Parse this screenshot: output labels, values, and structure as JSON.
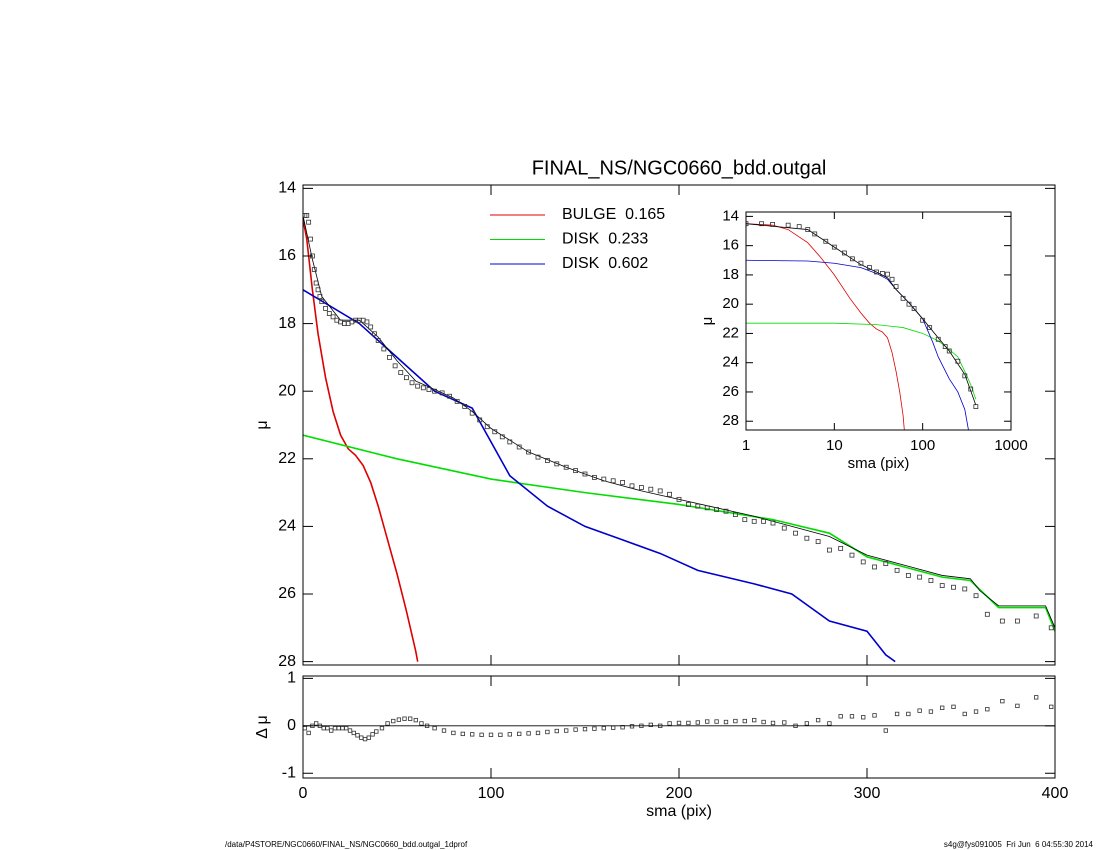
{
  "chart_data": [
    {
      "type": "line",
      "title": "FINAL_NS/NGC0660_bdd.outgal",
      "ylabel": "μ",
      "xlim": [
        0,
        400
      ],
      "xticks": [
        0,
        100,
        200,
        300,
        400
      ],
      "xtick_labels": false,
      "ylim": [
        28.1,
        13.9
      ],
      "yticks": [
        14,
        16,
        18,
        20,
        22,
        24,
        26,
        28
      ],
      "series": [
        {
          "name": "BULGE  0.165",
          "color": "#dd0000",
          "style": "line",
          "x": [
            0,
            2,
            5,
            8,
            12,
            16,
            20,
            24,
            28,
            32,
            36,
            40,
            45,
            50,
            55,
            60,
            61
          ],
          "values": [
            14.9,
            15.5,
            17.0,
            18.3,
            19.6,
            20.6,
            21.3,
            21.7,
            21.9,
            22.2,
            22.7,
            23.4,
            24.4,
            25.4,
            26.5,
            27.7,
            28
          ]
        },
        {
          "name": "DISK  0.233",
          "color": "#00dd00",
          "style": "line",
          "x": [
            0,
            50,
            100,
            150,
            200,
            250,
            280,
            300,
            320,
            340,
            355,
            370,
            380,
            395,
            400
          ],
          "values": [
            21.3,
            22.0,
            22.6,
            23.0,
            23.35,
            23.8,
            24.2,
            24.9,
            25.2,
            25.5,
            25.6,
            26.4,
            26.4,
            26.4,
            27.1
          ]
        },
        {
          "name": "DISK  0.602",
          "color": "#0000cc",
          "style": "line",
          "x": [
            0,
            30,
            50,
            70,
            90,
            100,
            110,
            130,
            150,
            170,
            190,
            210,
            240,
            260,
            280,
            300,
            310,
            315
          ],
          "values": [
            17.0,
            18.0,
            19.0,
            20.0,
            20.5,
            21.5,
            22.5,
            23.4,
            24.0,
            24.4,
            24.8,
            25.3,
            25.7,
            26.0,
            26.8,
            27.1,
            27.8,
            28
          ]
        },
        {
          "color": "#000000",
          "style": "thin",
          "x": [
            0,
            5,
            10,
            20,
            30,
            40,
            50,
            60,
            70,
            80,
            90,
            100,
            120,
            140,
            160,
            180,
            200,
            220,
            240,
            260,
            280,
            300,
            320,
            340,
            355,
            360,
            370,
            380,
            395,
            400
          ],
          "values": [
            14.8,
            16.1,
            17.2,
            17.9,
            17.9,
            18.4,
            19.1,
            19.7,
            19.95,
            20.2,
            20.6,
            21.1,
            21.8,
            22.25,
            22.65,
            22.95,
            23.2,
            23.45,
            23.7,
            24.0,
            24.3,
            24.85,
            25.15,
            25.45,
            25.55,
            25.9,
            26.35,
            26.35,
            26.35,
            27.0
          ]
        },
        {
          "color": "#333333",
          "style": "points",
          "x": [
            1,
            2,
            3,
            4,
            5,
            6,
            7,
            8,
            9,
            10,
            12,
            14,
            16,
            18,
            20,
            22,
            24,
            26,
            28,
            30,
            32,
            34,
            36,
            38,
            40,
            43,
            46,
            49,
            52,
            55,
            58,
            61,
            64,
            67,
            70,
            74,
            78,
            82,
            86,
            90,
            94,
            98,
            102,
            106,
            110,
            115,
            120,
            125,
            130,
            135,
            140,
            145,
            150,
            155,
            160,
            165,
            170,
            175,
            180,
            185,
            190,
            195,
            200,
            205,
            210,
            215,
            220,
            225,
            230,
            235,
            240,
            245,
            250,
            256,
            262,
            268,
            274,
            280,
            286,
            292,
            298,
            304,
            310,
            316,
            322,
            328,
            334,
            340,
            346,
            352,
            358,
            364,
            372,
            380,
            390,
            398
          ],
          "values": [
            14.8,
            14.8,
            15.0,
            15.5,
            16.0,
            16.4,
            16.8,
            17.0,
            17.2,
            17.35,
            17.55,
            17.7,
            17.8,
            17.9,
            17.95,
            18.0,
            18.0,
            17.95,
            17.9,
            17.9,
            17.9,
            17.95,
            18.1,
            18.3,
            18.5,
            18.75,
            19.0,
            19.25,
            19.45,
            19.6,
            19.75,
            19.85,
            19.9,
            19.95,
            20.0,
            20.05,
            20.15,
            20.3,
            20.45,
            20.65,
            20.85,
            21.05,
            21.2,
            21.35,
            21.5,
            21.65,
            21.8,
            21.95,
            22.05,
            22.15,
            22.25,
            22.35,
            22.45,
            22.55,
            22.6,
            22.65,
            22.7,
            22.8,
            22.85,
            22.9,
            22.95,
            23.05,
            23.2,
            23.35,
            23.4,
            23.45,
            23.5,
            23.55,
            23.65,
            23.8,
            23.85,
            23.85,
            23.9,
            24.05,
            24.2,
            24.35,
            24.45,
            24.7,
            24.65,
            24.85,
            25.05,
            25.2,
            25.1,
            25.3,
            25.45,
            25.5,
            25.6,
            25.75,
            25.8,
            25.85,
            26.05,
            26.6,
            26.8,
            26.8,
            26.65,
            27.0
          ]
        }
      ]
    },
    {
      "type": "scatter",
      "ylabel": "Δ μ",
      "xlabel": "sma (pix)",
      "xlim": [
        0,
        400
      ],
      "xticks": [
        0,
        100,
        200,
        300,
        400
      ],
      "xtick_labels": true,
      "ylim": [
        -1.1,
        1.05
      ],
      "yticks": [
        -1,
        0,
        1
      ],
      "reference_line": 0,
      "series": [
        {
          "color": "#333333",
          "style": "points",
          "x": [
            1,
            3,
            5,
            7,
            9,
            11,
            13,
            15,
            17,
            19,
            21,
            23,
            25,
            27,
            29,
            31,
            33,
            35,
            37,
            39,
            42,
            45,
            48,
            51,
            54,
            57,
            60,
            63,
            66,
            70,
            75,
            80,
            85,
            90,
            95,
            100,
            105,
            110,
            115,
            120,
            125,
            130,
            135,
            140,
            145,
            150,
            155,
            160,
            165,
            170,
            175,
            180,
            185,
            190,
            195,
            200,
            205,
            210,
            215,
            220,
            225,
            230,
            235,
            240,
            245,
            250,
            256,
            262,
            268,
            274,
            280,
            286,
            292,
            298,
            304,
            310,
            316,
            322,
            328,
            334,
            340,
            346,
            352,
            358,
            364,
            372,
            380,
            390,
            398
          ],
          "values": [
            -0.05,
            -0.15,
            0.0,
            0.05,
            0.0,
            -0.05,
            -0.05,
            -0.1,
            -0.05,
            -0.05,
            -0.05,
            -0.05,
            -0.1,
            -0.15,
            -0.2,
            -0.25,
            -0.28,
            -0.25,
            -0.18,
            -0.12,
            -0.05,
            0.05,
            0.1,
            0.13,
            0.15,
            0.15,
            0.12,
            0.05,
            0.0,
            -0.05,
            -0.1,
            -0.15,
            -0.17,
            -0.18,
            -0.19,
            -0.19,
            -0.19,
            -0.18,
            -0.17,
            -0.16,
            -0.15,
            -0.13,
            -0.11,
            -0.1,
            -0.08,
            -0.07,
            -0.06,
            -0.05,
            -0.04,
            -0.03,
            -0.01,
            0.0,
            0.02,
            0.0,
            0.05,
            0.06,
            0.06,
            0.07,
            0.09,
            0.09,
            0.08,
            0.1,
            0.1,
            0.12,
            0.08,
            0.06,
            0.07,
            0.0,
            0.05,
            0.12,
            0.05,
            0.2,
            0.2,
            0.18,
            0.22,
            -0.1,
            0.25,
            0.25,
            0.32,
            0.3,
            0.38,
            0.4,
            0.25,
            0.3,
            0.35,
            0.52,
            0.42,
            0.6,
            0.4
          ]
        }
      ]
    },
    {
      "type": "line",
      "ylabel": "μ",
      "xlabel": "sma (pix)",
      "xlog": true,
      "xlim": [
        1,
        1000
      ],
      "xticks": [
        1,
        10,
        100,
        1000
      ],
      "xtick_labels": true,
      "ylim": [
        28.6,
        13.7
      ],
      "yticks": [
        14,
        16,
        18,
        20,
        22,
        24,
        26,
        28
      ],
      "series": [
        {
          "color": "#dd0000",
          "style": "thin",
          "x": [
            1,
            2,
            3,
            5,
            7,
            10,
            15,
            20,
            25,
            30,
            35,
            40,
            45,
            50,
            55,
            60,
            62
          ],
          "values": [
            14.5,
            14.6,
            14.9,
            15.8,
            16.8,
            18.0,
            19.6,
            20.6,
            21.3,
            21.7,
            21.9,
            22.3,
            23.3,
            24.6,
            26.0,
            27.6,
            28.6
          ]
        },
        {
          "color": "#00dd00",
          "style": "thin",
          "x": [
            1,
            10,
            30,
            60,
            100,
            150,
            200,
            250,
            300,
            350,
            400
          ],
          "values": [
            21.3,
            21.3,
            21.4,
            21.6,
            22.0,
            22.5,
            23.1,
            23.6,
            24.6,
            25.5,
            26.5
          ]
        },
        {
          "color": "#0000cc",
          "style": "thin",
          "x": [
            1,
            5,
            10,
            20,
            30,
            40,
            50,
            70,
            100,
            130,
            150,
            200,
            250,
            300,
            330
          ],
          "values": [
            17.0,
            17.05,
            17.2,
            17.5,
            17.9,
            18.3,
            19.0,
            19.9,
            21.0,
            22.6,
            23.6,
            25.1,
            26.0,
            27.2,
            28.6
          ]
        },
        {
          "color": "#000000",
          "style": "thin",
          "x": [
            1,
            5,
            10,
            20,
            30,
            40,
            50,
            70,
            100,
            150,
            200,
            300,
            400
          ],
          "values": [
            14.5,
            14.9,
            16.1,
            17.3,
            17.8,
            18.2,
            19.0,
            19.9,
            21.0,
            22.3,
            23.2,
            24.8,
            26.9
          ]
        },
        {
          "color": "#333333",
          "style": "points",
          "x": [
            1,
            1.5,
            2,
            3,
            4,
            5,
            6,
            8,
            10,
            13,
            16,
            20,
            25,
            30,
            35,
            40,
            45,
            50,
            60,
            70,
            80,
            100,
            120,
            150,
            180,
            200,
            250,
            300,
            350,
            400
          ],
          "values": [
            14.5,
            14.5,
            14.55,
            14.6,
            14.7,
            14.9,
            15.2,
            15.7,
            16.1,
            16.5,
            16.9,
            17.2,
            17.5,
            17.8,
            17.9,
            17.95,
            18.3,
            18.8,
            19.6,
            20.0,
            20.3,
            21.1,
            21.6,
            22.4,
            22.9,
            23.2,
            23.9,
            24.9,
            25.8,
            27.0
          ]
        }
      ]
    }
  ],
  "footer": {
    "left": "/data/P4STORE/NGC0660/FINAL_NS/NGC0660_bdd.outgal_1dprof",
    "right": "s4g@fys091005  Fri Jun  6 04:55:30 2014"
  }
}
